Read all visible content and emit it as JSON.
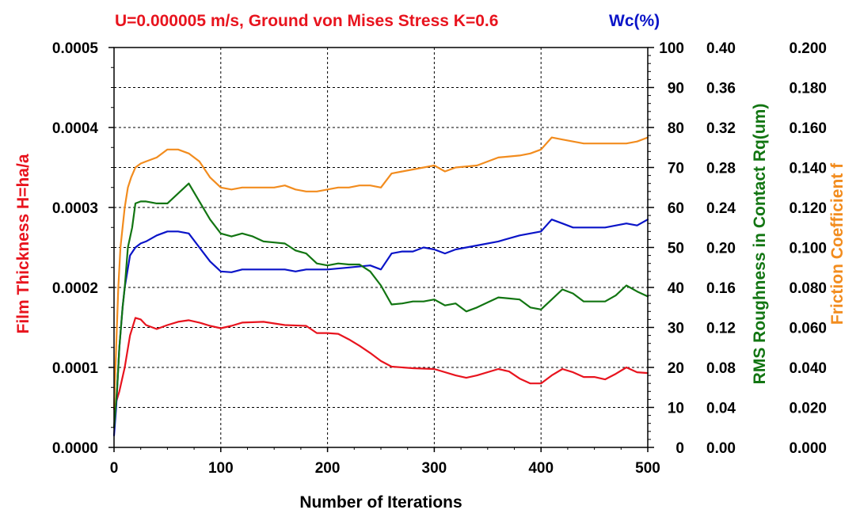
{
  "chart_data": {
    "type": "line",
    "title": "U=0.000005 m/s, Ground von Mises Stress K=0.6",
    "right_title": "Wc(%)",
    "xlabel": "Number of Iterations",
    "xlim": [
      0,
      500
    ],
    "x_ticks": [
      "0",
      "100",
      "200",
      "300",
      "400",
      "500"
    ],
    "grid": true,
    "axes": {
      "left": {
        "label": "Film Thickness H=ha/a",
        "range": [
          0,
          0.0005
        ],
        "ticks": [
          "0.0000",
          "0.0001",
          "0.0002",
          "0.0003",
          "0.0004",
          "0.0005"
        ],
        "color": "#e8141e"
      },
      "right1": {
        "label": "Wc(%)",
        "range": [
          0,
          100
        ],
        "ticks": [
          "0",
          "10",
          "20",
          "30",
          "40",
          "50",
          "60",
          "70",
          "80",
          "90",
          "100"
        ],
        "color": "#0a14c8"
      },
      "right2": {
        "label": "RMS Roughness in Contact Rq(um)",
        "range": [
          0,
          0.4
        ],
        "ticks": [
          "0.00",
          "0.04",
          "0.08",
          "0.12",
          "0.16",
          "0.20",
          "0.24",
          "0.28",
          "0.32",
          "0.36",
          "0.40"
        ],
        "color": "#127512"
      },
      "right3": {
        "label": "Friction Coefficient f",
        "range": [
          0,
          0.2
        ],
        "ticks": [
          "0.000",
          "0.020",
          "0.040",
          "0.060",
          "0.080",
          "0.100",
          "0.120",
          "0.140",
          "0.160",
          "0.180",
          "0.200"
        ],
        "color": "#f28c1e"
      }
    },
    "series": [
      {
        "color": "#e8141e",
        "axis": "left",
        "x": [
          0,
          5,
          10,
          15,
          20,
          25,
          30,
          40,
          50,
          60,
          70,
          80,
          90,
          100,
          110,
          120,
          140,
          160,
          180,
          190,
          200,
          210,
          220,
          230,
          240,
          250,
          260,
          280,
          300,
          320,
          330,
          340,
          360,
          370,
          380,
          390,
          400,
          410,
          420,
          430,
          440,
          450,
          460,
          470,
          480,
          490,
          500
        ],
        "values": [
          4.8e-05,
          7e-05,
          0.0001,
          0.00014,
          0.000162,
          0.00016,
          0.000153,
          0.000148,
          0.000153,
          0.000157,
          0.000159,
          0.000156,
          0.000152,
          0.000149,
          0.000152,
          0.000156,
          0.000157,
          0.000153,
          0.000152,
          0.000143,
          0.000143,
          0.000142,
          0.000135,
          0.000127,
          0.000118,
          0.000108,
          0.000101,
          9.9e-05,
          9.8e-05,
          9e-05,
          8.7e-05,
          9e-05,
          9.8e-05,
          9.5e-05,
          8.6e-05,
          8e-05,
          8e-05,
          9e-05,
          9.8e-05,
          9.4e-05,
          8.8e-05,
          8.8e-05,
          8.5e-05,
          9.2e-05,
          0.0001,
          9.4e-05,
          9.3e-05
        ]
      },
      {
        "color": "#0a14c8",
        "axis": "right1",
        "x": [
          0,
          2,
          5,
          8,
          10,
          15,
          20,
          25,
          30,
          40,
          50,
          60,
          70,
          80,
          90,
          100,
          110,
          120,
          140,
          160,
          170,
          180,
          190,
          200,
          220,
          240,
          250,
          260,
          270,
          280,
          290,
          300,
          310,
          320,
          340,
          360,
          380,
          390,
          400,
          410,
          420,
          430,
          440,
          460,
          480,
          490,
          500
        ],
        "values": [
          3,
          10,
          25,
          35,
          40,
          48,
          50,
          51,
          51.5,
          53,
          54,
          54,
          53.5,
          50,
          46.5,
          44,
          43.8,
          44.5,
          44.5,
          44.5,
          44,
          44.5,
          44.5,
          44.5,
          45,
          45.5,
          44.5,
          48.5,
          49,
          49,
          50,
          49.5,
          48.5,
          49.5,
          50.5,
          51.5,
          53,
          53.5,
          54,
          57,
          56,
          55,
          55,
          55,
          56,
          55.5,
          57
        ]
      },
      {
        "color": "#127512",
        "axis": "right2",
        "x": [
          0,
          3,
          5,
          8,
          10,
          13,
          17,
          20,
          25,
          30,
          40,
          50,
          60,
          70,
          80,
          90,
          100,
          110,
          120,
          130,
          140,
          150,
          160,
          170,
          180,
          190,
          200,
          210,
          220,
          230,
          240,
          250,
          260,
          270,
          280,
          290,
          300,
          310,
          320,
          330,
          340,
          350,
          360,
          370,
          380,
          390,
          400,
          410,
          420,
          430,
          440,
          450,
          460,
          470,
          480,
          490,
          500
        ],
        "values": [
          0.02,
          0.06,
          0.1,
          0.14,
          0.16,
          0.2,
          0.22,
          0.244,
          0.246,
          0.246,
          0.244,
          0.244,
          0.254,
          0.264,
          0.246,
          0.228,
          0.214,
          0.211,
          0.214,
          0.211,
          0.206,
          0.205,
          0.204,
          0.197,
          0.194,
          0.184,
          0.182,
          0.184,
          0.183,
          0.183,
          0.176,
          0.162,
          0.143,
          0.144,
          0.146,
          0.146,
          0.148,
          0.142,
          0.144,
          0.136,
          0.14,
          0.145,
          0.15,
          0.149,
          0.148,
          0.14,
          0.138,
          0.148,
          0.158,
          0.154,
          0.146,
          0.146,
          0.146,
          0.152,
          0.162,
          0.156,
          0.151
        ]
      },
      {
        "color": "#f28c1e",
        "axis": "right3",
        "x": [
          0,
          2,
          4,
          6,
          8,
          10,
          13,
          16,
          20,
          25,
          30,
          40,
          50,
          60,
          70,
          80,
          90,
          100,
          110,
          120,
          130,
          140,
          150,
          160,
          170,
          180,
          190,
          200,
          210,
          220,
          230,
          240,
          250,
          260,
          270,
          280,
          290,
          300,
          310,
          320,
          340,
          360,
          380,
          390,
          400,
          410,
          420,
          430,
          440,
          450,
          460,
          470,
          480,
          490,
          500
        ],
        "values": [
          0.02,
          0.05,
          0.08,
          0.1,
          0.11,
          0.12,
          0.13,
          0.135,
          0.14,
          0.142,
          0.143,
          0.145,
          0.149,
          0.149,
          0.147,
          0.143,
          0.135,
          0.13,
          0.129,
          0.13,
          0.13,
          0.13,
          0.13,
          0.131,
          0.129,
          0.128,
          0.128,
          0.129,
          0.13,
          0.13,
          0.131,
          0.131,
          0.13,
          0.137,
          0.138,
          0.139,
          0.14,
          0.141,
          0.138,
          0.14,
          0.141,
          0.145,
          0.146,
          0.147,
          0.149,
          0.155,
          0.154,
          0.153,
          0.152,
          0.152,
          0.152,
          0.152,
          0.152,
          0.153,
          0.155
        ]
      }
    ]
  }
}
